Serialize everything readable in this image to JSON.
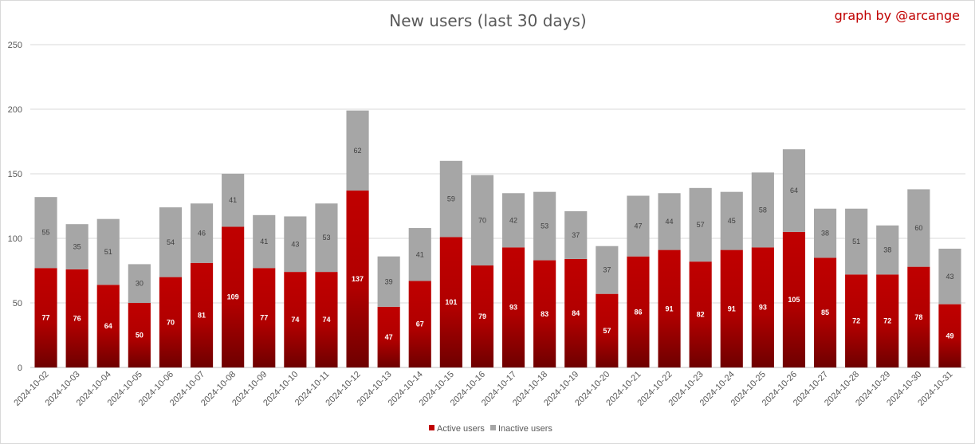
{
  "chart_data": {
    "type": "bar",
    "stacked": true,
    "title": "New users (last 30 days)",
    "credit": "graph by @arcange",
    "ylim": [
      0,
      250
    ],
    "yticks": [
      0,
      50,
      100,
      150,
      200,
      250
    ],
    "grid": true,
    "legend_position": "bottom",
    "categories": [
      "2024-10-02",
      "2024-10-03",
      "2024-10-04",
      "2024-10-05",
      "2024-10-06",
      "2024-10-07",
      "2024-10-08",
      "2024-10-09",
      "2024-10-10",
      "2024-10-11",
      "2024-10-12",
      "2024-10-13",
      "2024-10-14",
      "2024-10-15",
      "2024-10-16",
      "2024-10-17",
      "2024-10-18",
      "2024-10-19",
      "2024-10-20",
      "2024-10-21",
      "2024-10-22",
      "2024-10-23",
      "2024-10-24",
      "2024-10-25",
      "2024-10-26",
      "2024-10-27",
      "2024-10-28",
      "2024-10-29",
      "2024-10-30",
      "2024-10-31"
    ],
    "series": [
      {
        "name": "Active users",
        "color": "#c00000",
        "values": [
          77,
          76,
          64,
          50,
          70,
          81,
          109,
          77,
          74,
          74,
          137,
          47,
          67,
          101,
          79,
          93,
          83,
          84,
          57,
          86,
          91,
          82,
          91,
          93,
          105,
          85,
          72,
          72,
          78,
          49
        ]
      },
      {
        "name": "Inactive users",
        "color": "#a6a6a6",
        "values": [
          55,
          35,
          51,
          30,
          54,
          46,
          41,
          41,
          43,
          53,
          62,
          39,
          41,
          59,
          70,
          42,
          53,
          37,
          37,
          47,
          44,
          57,
          45,
          58,
          64,
          38,
          51,
          38,
          60,
          43
        ]
      }
    ]
  }
}
